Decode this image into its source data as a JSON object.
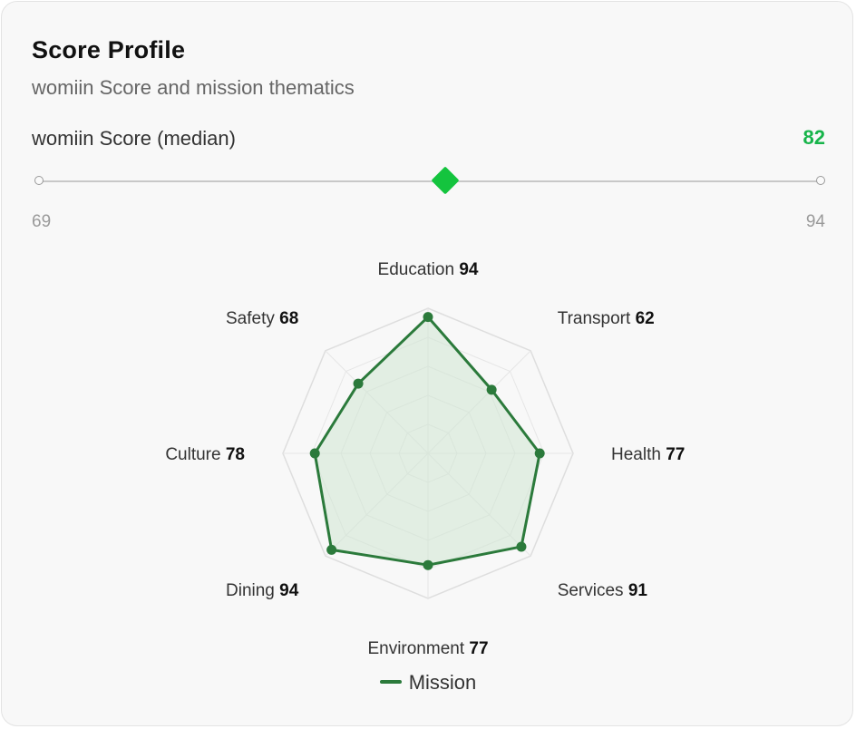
{
  "card": {
    "title": "Score Profile",
    "subtitle": "womiin Score and mission thematics"
  },
  "score": {
    "label": "womiin Score (median)",
    "value": "82",
    "value_number": 82,
    "min": "69",
    "max": "94",
    "min_number": 69,
    "max_number": 94
  },
  "colors": {
    "accent_green": "#17b44a",
    "marker_green": "#14c43e",
    "series_line": "#2b7a3b",
    "series_fill": "#cfe6d2"
  },
  "chart_data": {
    "type": "radar",
    "categories": [
      "Education",
      "Transport",
      "Health",
      "Services",
      "Environment",
      "Dining",
      "Culture",
      "Safety"
    ],
    "series": [
      {
        "name": "Mission",
        "values": [
          94,
          62,
          77,
          91,
          77,
          94,
          78,
          68
        ]
      }
    ],
    "rlim": [
      0,
      100
    ],
    "grid": true,
    "legend": "bottom-center"
  }
}
